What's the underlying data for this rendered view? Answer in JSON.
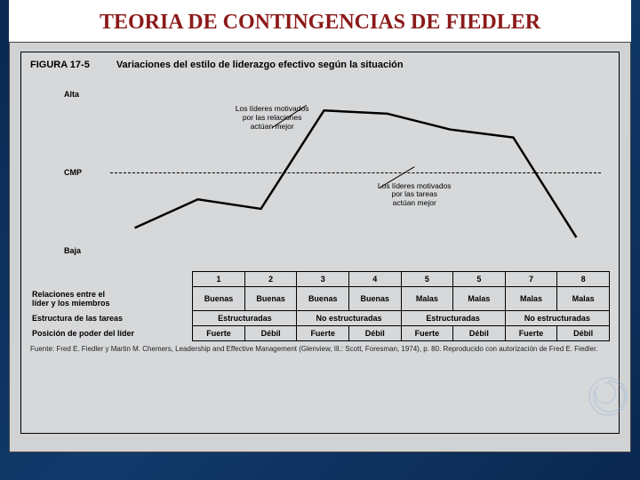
{
  "page_title": "TEORIA DE CONTINGENCIAS DE FIEDLER",
  "figure": {
    "number_label": "FIGURA 17-5",
    "title": "Variaciones del estilo de liderazgo efectivo según la situación",
    "yaxis": {
      "top": "Alta",
      "mid": "CMP",
      "bottom": "Baja"
    },
    "annotations": {
      "upper": "Los líderes motivados\npor las relaciones\nactúan mejor",
      "lower": "Los líderes motivados\npor las tareas\nactúan mejor"
    },
    "style": {
      "title_color": "#8b1a1a",
      "title_fontsize_pt": 18,
      "bg_color": "#d6d8da",
      "line_color": "#000000",
      "line_width": 2.5,
      "dash_color": "#000000",
      "font_family": "Arial",
      "label_fontsize_pt": 9
    },
    "chart": {
      "type": "line",
      "x_categories": [
        "1",
        "2",
        "3",
        "4",
        "5",
        "5",
        "7",
        "8"
      ],
      "y_values": [
        0.18,
        0.36,
        0.3,
        0.92,
        0.9,
        0.8,
        0.75,
        0.12
      ],
      "y_range": [
        0,
        1
      ]
    },
    "rows": [
      {
        "label": "Relaciones entre el\nlíder y los miembros",
        "cells": [
          "Buenas",
          "Buenas",
          "Buenas",
          "Buenas",
          "Malas",
          "Malas",
          "Malas",
          "Malas"
        ],
        "spans": [
          1,
          1,
          1,
          1,
          1,
          1,
          1,
          1
        ]
      },
      {
        "label": "Estructura de las tareas",
        "cells": [
          "Estructuradas",
          "No estructuradas",
          "Estructuradas",
          "No estructuradas"
        ],
        "spans": [
          2,
          2,
          2,
          2
        ]
      },
      {
        "label": "Posición de poder del líder",
        "cells": [
          "Fuerte",
          "Débil",
          "Fuerte",
          "Débil",
          "Fuerte",
          "Débil",
          "Fuerte",
          "Débil"
        ],
        "spans": [
          1,
          1,
          1,
          1,
          1,
          1,
          1,
          1
        ]
      }
    ],
    "caption": "Fuente: Fred E. Fiedler y Martin M. Chemers, Leadership and Effective Management (Glenview, Ill.: Scott, Foresman, 1974), p. 80. Reproducido con autorización de Fred E. Fiedler."
  }
}
